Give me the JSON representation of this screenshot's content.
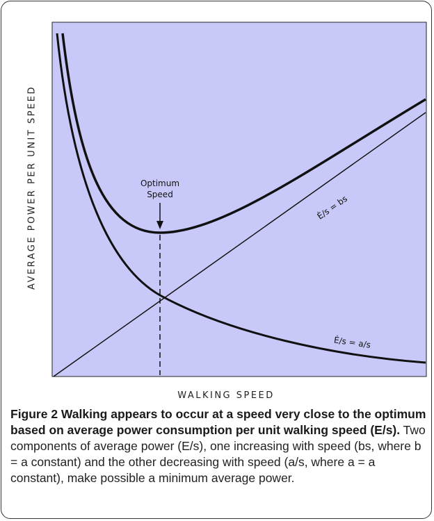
{
  "figure": {
    "y_axis_label": "AVERAGE POWER PER UNIT SPEED",
    "x_axis_label": "WALKING SPEED",
    "optimum_label": [
      "Optimum",
      "Speed"
    ],
    "line_label": "Ė/s = bs",
    "curve_label": "Ė/s = a/s"
  },
  "caption": {
    "title": "Figure 2 Walking appears to occur at a speed very close to the optimum based on average power consumption per unit walking speed (E/s).",
    "text": "Two components of average power (E/s), one increasing with speed (bs, where b = a constant) and the other decreasing with speed (a/s, where a = a constant), make possible a minimum average power."
  }
}
